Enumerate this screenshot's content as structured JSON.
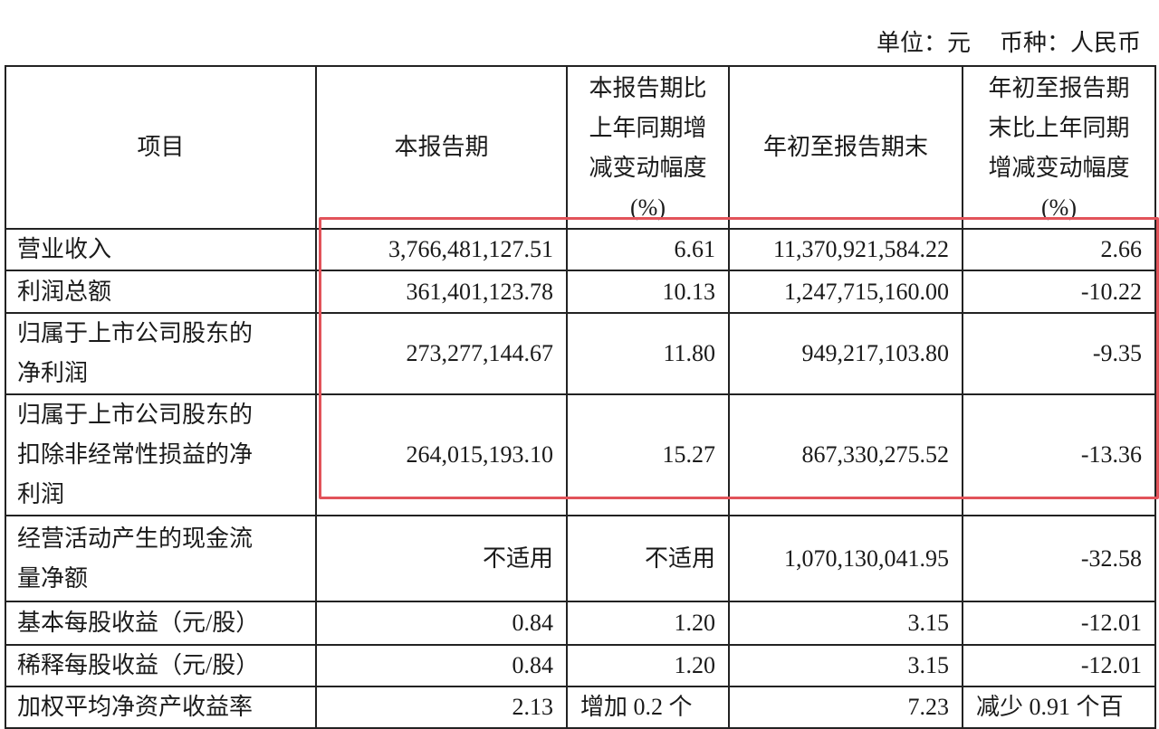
{
  "unit_line": {
    "unit": "单位：元",
    "currency": "币种：人民币"
  },
  "headers": [
    "项目",
    "本报告期",
    "本报告期比上年同期增减变动幅度(%)",
    "年初至报告期末",
    "年初至报告期末比上年同期增减变动幅度(%)"
  ],
  "header_lines": {
    "col3": [
      "本报告期比",
      "上年同期增",
      "减变动幅度",
      "(%)"
    ],
    "col5": [
      "年初至报告期",
      "末比上年同期",
      "增减变动幅度",
      "(%)"
    ]
  },
  "rows": [
    {
      "item": "营业收入",
      "current": "3,766,481,127.51",
      "current_change": "6.61",
      "ytd": "11,370,921,584.22",
      "ytd_change": "2.66"
    },
    {
      "item": "利润总额",
      "current": "361,401,123.78",
      "current_change": "10.13",
      "ytd": "1,247,715,160.00",
      "ytd_change": "-10.22"
    },
    {
      "item": "归属于上市公司股东的净利润",
      "current": "273,277,144.67",
      "current_change": "11.80",
      "ytd": "949,217,103.80",
      "ytd_change": "-9.35"
    },
    {
      "item": "归属于上市公司股东的扣除非经常性损益的净利润",
      "current": "264,015,193.10",
      "current_change": "15.27",
      "ytd": "867,330,275.52",
      "ytd_change": "-13.36"
    },
    {
      "item": "经营活动产生的现金流量净额",
      "current": "不适用",
      "current_change": "不适用",
      "ytd": "1,070,130,041.95",
      "ytd_change": "-32.58"
    },
    {
      "item": "基本每股收益（元/股）",
      "current": "0.84",
      "current_change": "1.20",
      "ytd": "3.15",
      "ytd_change": "-12.01"
    },
    {
      "item": "稀释每股收益（元/股）",
      "current": "0.84",
      "current_change": "1.20",
      "ytd": "3.15",
      "ytd_change": "-12.01"
    },
    {
      "item": "加权平均净资产收益率",
      "current": "2.13",
      "current_change": "增加 0.2 个",
      "ytd": "7.23",
      "ytd_change": "减少 0.91 个百"
    }
  ],
  "item_lines": {
    "r3": [
      "归属于上市公司股东的",
      "净利润"
    ],
    "r4": [
      "归属于上市公司股东的",
      "扣除非经常性损益的净",
      "利润"
    ],
    "r5": [
      "经营活动产生的现金流",
      "量净额"
    ]
  },
  "colors": {
    "highlight_box": "#e2535a",
    "border": "#222222"
  }
}
